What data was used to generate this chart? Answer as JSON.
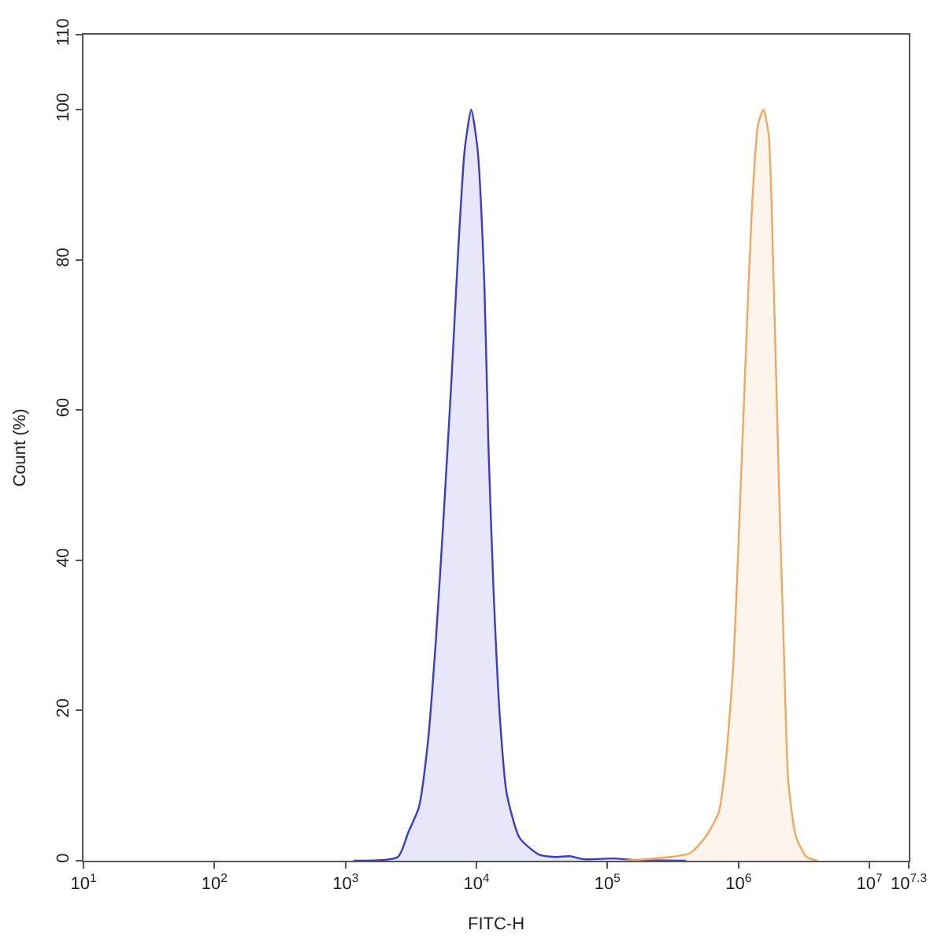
{
  "chart_data": {
    "type": "area",
    "xlabel": "FITC-H",
    "ylabel": "Count (%)",
    "log": "x",
    "marker": "none",
    "line_style": "solid",
    "xlim": [
      10,
      19952623
    ],
    "ylim": [
      0,
      110
    ],
    "xticks": [
      {
        "value": 10,
        "label": "10$^{1}$"
      },
      {
        "value": 100,
        "label": "10$^{2}$"
      },
      {
        "value": 1000,
        "label": "10$^{3}$"
      },
      {
        "value": 10000,
        "label": "10$^{4}$"
      },
      {
        "value": 100000,
        "label": "10$^{5}$"
      },
      {
        "value": 1000000,
        "label": "10$^{6}$"
      },
      {
        "value": 10000000,
        "label": "10$^{7}$"
      },
      {
        "value": 19952623,
        "label": "10$^{7.3}$"
      }
    ],
    "yticks": [
      0,
      20,
      40,
      60,
      80,
      100,
      110
    ],
    "series": [
      {
        "color": "#3b3bcc",
        "x": [
          1150,
          2510,
          3020,
          3630,
          4270,
          4900,
          5620,
          6460,
          7240,
          8130,
          9120,
          10200,
          11500,
          12300,
          13500,
          15100,
          17000,
          21400,
          30200,
          39800,
          51300,
          66100,
          112000,
          158000,
          398000
        ],
        "values": [
          0,
          0.5,
          3.8,
          7.1,
          16,
          29.4,
          46,
          64.4,
          81,
          94.7,
          100,
          94.7,
          76.5,
          56,
          36,
          19,
          9,
          3,
          0.8,
          0.5,
          0.6,
          0.2,
          0.3,
          0.1,
          0
        ]
      },
      {
        "color": "#f0a860",
        "x": [
          135000,
          302000,
          427000,
          562000,
          708000,
          794000,
          912000,
          1020000,
          1150000,
          1260000,
          1410000,
          1550000,
          1700000,
          1860000,
          2040000,
          2240000,
          2400000,
          2750000,
          3310000,
          3980000
        ],
        "values": [
          0,
          0.5,
          1,
          3.2,
          6.5,
          12.6,
          26,
          46,
          69.6,
          86,
          98,
          100,
          96.7,
          76.5,
          49.6,
          26,
          10.6,
          3.2,
          0.5,
          0
        ]
      }
    ]
  }
}
